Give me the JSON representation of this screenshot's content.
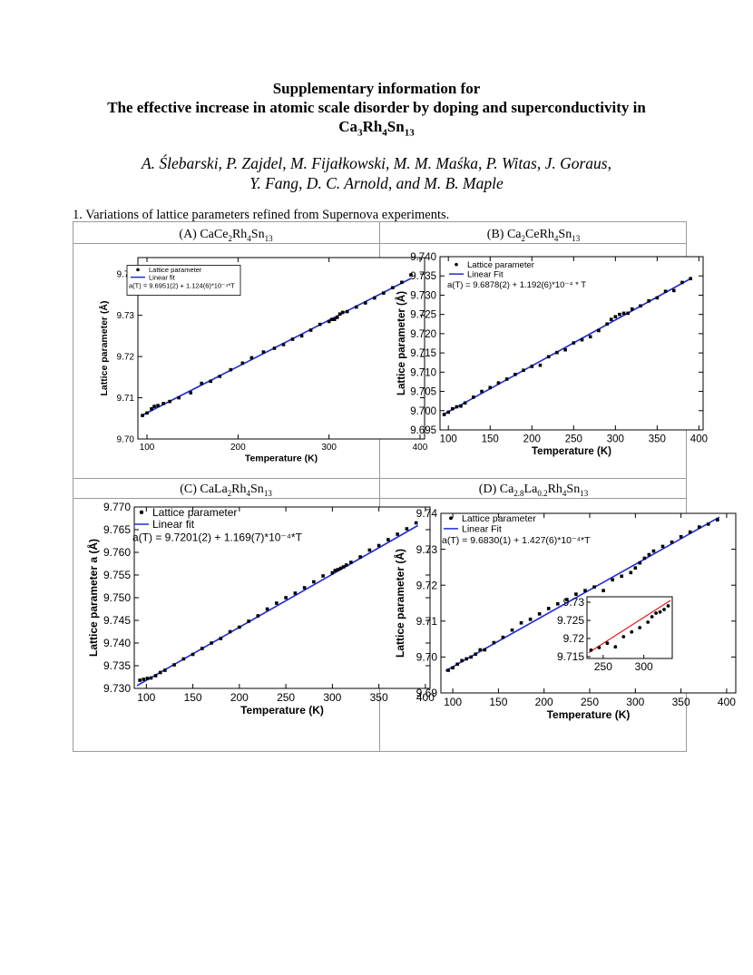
{
  "header": {
    "title_line1": "Supplementary information for",
    "title_line2": "The effective increase in atomic scale disorder by doping and superconductivity in",
    "formula": [
      "Ca",
      "3",
      "Rh",
      "4",
      "Sn",
      "13"
    ],
    "authors_line1": "A. Ślebarski, P. Zajdel, M. Fijałkowski, M. M. Maśka, P. Witas, J. Goraus,",
    "authors_line2": "Y. Fang, D. C. Arnold, and M. B. Maple"
  },
  "section_heading": "1. Variations of lattice parameters refined from Supernova experiments.",
  "captions": {
    "A": [
      "(A) CaCe",
      "2",
      "Rh",
      "4",
      "Sn",
      "13"
    ],
    "B": [
      "(B) Ca",
      "2",
      "CeRh",
      "4",
      "Sn",
      "13"
    ],
    "C": [
      "(C) CaLa",
      "2",
      "Rh",
      "4",
      "Sn",
      "13"
    ],
    "D": [
      "(D) Ca",
      "2.8",
      "La",
      "0.2",
      "Rh",
      "4",
      "Sn",
      "13"
    ]
  },
  "colors": {
    "fit_line": "#1f2bd9",
    "inset_fit_line": "#e01b1b",
    "points": "#000000",
    "border": "#9a9a9a"
  },
  "chart_data": [
    {
      "id": "A",
      "type": "scatter",
      "xlabel": "Temperature (K)",
      "ylabel": "Lattice parameter (Å)",
      "xlim": [
        90,
        405
      ],
      "ylim": [
        9.7,
        9.744
      ],
      "xticks": [
        100,
        200,
        300,
        400
      ],
      "yticks": [
        9.7,
        9.71,
        9.72,
        9.73,
        9.74
      ],
      "ytick_decimals": 2,
      "legend": {
        "points": "Lattice parameter",
        "line": "Linear fit",
        "equation": "a(T) = 9.6951(2) + 1.124(6)*10⁻⁴*T"
      },
      "fit": {
        "intercept": 9.6951,
        "slope": 0.0001124,
        "x_range": [
          95,
          390
        ]
      },
      "series": [
        {
          "name": "Lattice parameter",
          "x": [
            95,
            100,
            105,
            108,
            112,
            118,
            125,
            135,
            148,
            160,
            170,
            180,
            192,
            205,
            215,
            228,
            240,
            250,
            260,
            270,
            280,
            290,
            300,
            303,
            306,
            309,
            312,
            315,
            320,
            330,
            340,
            350,
            360,
            370,
            380,
            390
          ],
          "y": [
            9.7057,
            9.7063,
            9.7073,
            9.7079,
            9.7081,
            9.7086,
            9.7091,
            9.71,
            9.7112,
            9.7135,
            9.714,
            9.7152,
            9.7168,
            9.7184,
            9.7197,
            9.7211,
            9.722,
            9.7229,
            9.7242,
            9.725,
            9.7264,
            9.7278,
            9.7285,
            9.729,
            9.729,
            9.7295,
            9.7303,
            9.7307,
            9.7309,
            9.732,
            9.733,
            9.7342,
            9.7354,
            9.7367,
            9.738,
            9.7398
          ]
        }
      ]
    },
    {
      "id": "B",
      "type": "scatter",
      "xlabel": "Temperature (K)",
      "ylabel": "Lattice parameter (Å)",
      "xlim": [
        90,
        405
      ],
      "ylim": [
        9.695,
        9.74
      ],
      "xticks": [
        100,
        150,
        200,
        250,
        300,
        350,
        400
      ],
      "yticks": [
        9.695,
        9.7,
        9.705,
        9.71,
        9.715,
        9.72,
        9.725,
        9.73,
        9.735,
        9.74
      ],
      "ytick_decimals": 3,
      "legend": {
        "points": "Lattice parameter",
        "line": "Linear Fit",
        "equation": "a(T) = 9.6878(2) + 1.192(6)*10⁻⁴ * T"
      },
      "fit": {
        "intercept": 9.6878,
        "slope": 0.0001192,
        "x_range": [
          95,
          390
        ]
      },
      "series": [
        {
          "name": "Lattice parameter",
          "x": [
            95,
            100,
            105,
            110,
            115,
            120,
            130,
            140,
            150,
            160,
            170,
            180,
            190,
            200,
            210,
            220,
            230,
            240,
            250,
            260,
            270,
            280,
            290,
            295,
            300,
            305,
            310,
            315,
            320,
            330,
            340,
            350,
            360,
            370,
            380,
            390
          ],
          "y": [
            9.699,
            9.6996,
            9.7005,
            9.701,
            9.7012,
            9.702,
            9.7035,
            9.705,
            9.706,
            9.7072,
            9.7082,
            9.7094,
            9.7105,
            9.7115,
            9.7118,
            9.714,
            9.7151,
            9.7158,
            9.7176,
            9.7184,
            9.7192,
            9.7208,
            9.7225,
            9.7237,
            9.7244,
            9.725,
            9.7253,
            9.7253,
            9.7264,
            9.7272,
            9.7285,
            9.7293,
            9.731,
            9.7312,
            9.7333,
            9.7343
          ]
        }
      ]
    },
    {
      "id": "C",
      "type": "scatter",
      "xlabel": "Temperature (K)",
      "ylabel": "Lattice parameter a (Å)",
      "xlim": [
        87,
        405
      ],
      "ylim": [
        9.73,
        9.77
      ],
      "xticks": [
        100,
        150,
        200,
        250,
        300,
        350,
        400
      ],
      "yticks": [
        9.73,
        9.735,
        9.74,
        9.745,
        9.75,
        9.755,
        9.76,
        9.765,
        9.77
      ],
      "ytick_decimals": 3,
      "legend": {
        "points": "Lattice parameter",
        "line": "Linear fit",
        "equation": "a(T) = 9.7201(2) + 1.169(7)*10⁻⁴*T"
      },
      "fit": {
        "intercept": 9.7201,
        "slope": 0.0001169,
        "x_range": [
          90,
          392
        ]
      },
      "series": [
        {
          "name": "Lattice parameter",
          "x": [
            93,
            97,
            101,
            105,
            110,
            115,
            120,
            130,
            140,
            150,
            160,
            170,
            180,
            190,
            200,
            210,
            220,
            230,
            240,
            250,
            260,
            270,
            280,
            290,
            300,
            303,
            306,
            309,
            312,
            315,
            320,
            330,
            340,
            350,
            360,
            370,
            380,
            390
          ],
          "y": [
            9.7318,
            9.732,
            9.7322,
            9.7323,
            9.7328,
            9.7335,
            9.734,
            9.7352,
            9.7365,
            9.7375,
            9.7388,
            9.74,
            9.741,
            9.7425,
            9.7435,
            9.7448,
            9.746,
            9.7475,
            9.7488,
            9.75,
            9.751,
            9.7522,
            9.7535,
            9.7548,
            9.7555,
            9.756,
            9.7562,
            9.7565,
            9.7568,
            9.7572,
            9.7578,
            9.759,
            9.7605,
            9.7615,
            9.7628,
            9.764,
            9.7652,
            9.7665
          ]
        }
      ]
    },
    {
      "id": "D",
      "type": "scatter",
      "xlabel": "Temperature (K)",
      "ylabel": "Lattice parameter (Å)",
      "xlim": [
        87,
        410
      ],
      "ylim": [
        9.69,
        9.74
      ],
      "xticks": [
        100,
        150,
        200,
        250,
        300,
        350,
        400
      ],
      "yticks": [
        9.69,
        9.7,
        9.71,
        9.72,
        9.73,
        9.74
      ],
      "ytick_decimals": 2,
      "legend": {
        "points": "Lattice parameter",
        "line": "Linear Fit",
        "equation": "a(T) = 9.6830(1) + 1.427(6)*10⁻⁴*T"
      },
      "fit": {
        "intercept": 9.683,
        "slope": 0.0001427,
        "x_range": [
          92,
          392
        ]
      },
      "series": [
        {
          "name": "Lattice parameter",
          "x": [
            95,
            100,
            105,
            110,
            115,
            120,
            125,
            130,
            135,
            145,
            155,
            165,
            175,
            185,
            195,
            205,
            215,
            225,
            235,
            245,
            255,
            265,
            275,
            285,
            295,
            300,
            305,
            310,
            315,
            320,
            330,
            340,
            350,
            360,
            370,
            380,
            390
          ],
          "y": [
            9.6963,
            9.697,
            9.698,
            9.699,
            9.6995,
            9.7,
            9.7008,
            9.702,
            9.702,
            9.704,
            9.7055,
            9.7075,
            9.7095,
            9.7105,
            9.712,
            9.7135,
            9.7148,
            9.716,
            9.7175,
            9.7185,
            9.7195,
            9.7185,
            9.7215,
            9.7225,
            9.7235,
            9.7248,
            9.7262,
            9.7275,
            9.7285,
            9.7295,
            9.7308,
            9.732,
            9.7335,
            9.7348,
            9.7362,
            9.737,
            9.7382
          ]
        }
      ],
      "inset": {
        "type": "scatter",
        "xlim": [
          230,
          335
        ],
        "ylim": [
          9.7145,
          9.7315
        ],
        "xticks": [
          250,
          300
        ],
        "yticks": [
          9.715,
          9.72,
          9.725,
          9.73
        ],
        "ytick_labels": [
          "9.715",
          "9.72",
          "9.725",
          "9.73"
        ],
        "fit": {
          "intercept": 9.683,
          "slope": 0.0001427,
          "x_range": [
            232,
            333
          ]
        },
        "x": [
          235,
          245,
          255,
          265,
          275,
          285,
          295,
          305,
          310,
          315,
          320,
          325,
          330
        ],
        "y": [
          9.7168,
          9.7175,
          9.7187,
          9.7177,
          9.7205,
          9.7218,
          9.723,
          9.7245,
          9.726,
          9.727,
          9.7273,
          9.728,
          9.729
        ]
      }
    }
  ]
}
